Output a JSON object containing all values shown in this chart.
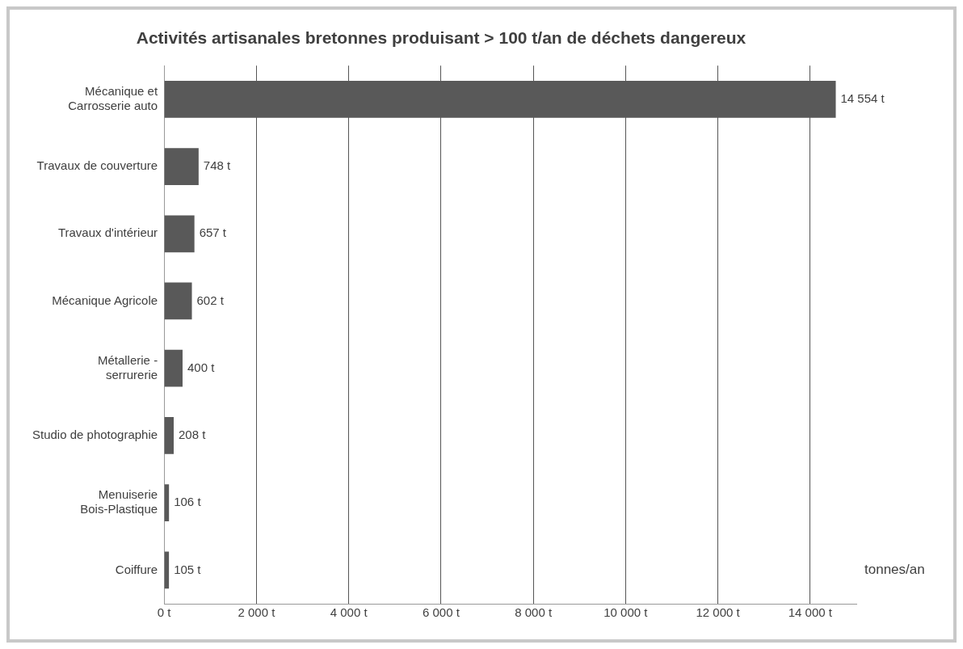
{
  "chart_data": {
    "type": "bar",
    "orientation": "horizontal",
    "title": "Activités artisanales bretonnes produisant > 100 t/an de déchets dangereux",
    "xlabel": "tonnes/an",
    "categories": [
      "Mécanique et Carrosserie auto",
      "Travaux de couverture",
      "Travaux d'intérieur",
      "Mécanique Agricole",
      "Métallerie - serrurerie",
      "Studio de photographie",
      "Menuiserie Bois-Plastique",
      "Coiffure"
    ],
    "values": [
      14554,
      748,
      657,
      602,
      400,
      208,
      106,
      105
    ],
    "value_labels": [
      "14 554 t",
      "748 t",
      "657 t",
      "602 t",
      "400 t",
      "208 t",
      "106 t",
      "105 t"
    ],
    "color": "#595959",
    "xlim": [
      0,
      15000
    ],
    "xticks": [
      {
        "value": 0,
        "label": "0 t"
      },
      {
        "value": 2000,
        "label": "2 000 t"
      },
      {
        "value": 4000,
        "label": "4 000 t"
      },
      {
        "value": 6000,
        "label": "6 000 t"
      },
      {
        "value": 8000,
        "label": "8 000 t"
      },
      {
        "value": 10000,
        "label": "10 000 t"
      },
      {
        "value": 12000,
        "label": "12 000 t"
      },
      {
        "value": 14000,
        "label": "14 000 t"
      }
    ],
    "grid": "x",
    "legend": false
  }
}
